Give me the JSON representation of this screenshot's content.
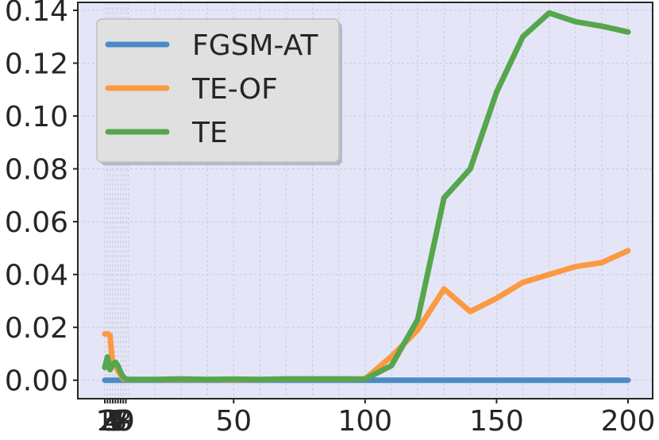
{
  "chart_data": {
    "type": "line",
    "title": "",
    "xlabel": "",
    "ylabel": "",
    "x": [
      1,
      2,
      3,
      4,
      5,
      6,
      7,
      8,
      9,
      10,
      20,
      30,
      40,
      50,
      60,
      70,
      80,
      90,
      100,
      110,
      120,
      130,
      140,
      150,
      160,
      170,
      180,
      190,
      200
    ],
    "x_ticks": [
      {
        "value": 1,
        "label": "1"
      },
      {
        "value": 2,
        "label": "2"
      },
      {
        "value": 3,
        "label": "3"
      },
      {
        "value": 4,
        "label": "4"
      },
      {
        "value": 5,
        "label": "5"
      },
      {
        "value": 6,
        "label": "6"
      },
      {
        "value": 7,
        "label": "7"
      },
      {
        "value": 8,
        "label": "8"
      },
      {
        "value": 9,
        "label": "9"
      },
      {
        "value": 50,
        "label": "50"
      },
      {
        "value": 100,
        "label": "100"
      },
      {
        "value": 150,
        "label": "150"
      },
      {
        "value": 200,
        "label": "200"
      }
    ],
    "y_ticks": [
      "0.00",
      "0.02",
      "0.04",
      "0.06",
      "0.08",
      "0.10",
      "0.12",
      "0.14"
    ],
    "ylim": [
      -0.007,
      0.143
    ],
    "grid": true,
    "legend_position": "top-left",
    "colors": {
      "background": "#e5e5f8",
      "grid": "#c9c9dd"
    },
    "series": [
      {
        "name": "FGSM-AT",
        "color": "#4a8bc4",
        "values": [
          0,
          0,
          0,
          0,
          0,
          0,
          0,
          0,
          0,
          0,
          0,
          0,
          0,
          0,
          0,
          0,
          0,
          0,
          0,
          0,
          0,
          0,
          0,
          0,
          0,
          0,
          0,
          0,
          0
        ]
      },
      {
        "name": "TE-OF",
        "color": "#fb9a40",
        "values": [
          0.0175,
          0.0176,
          0.017,
          0.006,
          0.0055,
          0.0035,
          0.002,
          0.0005,
          0.0003,
          0.0002,
          0.0002,
          0.0003,
          0.0002,
          0.0002,
          0.0002,
          0.0004,
          0.0004,
          0.0004,
          0.0005,
          0.009,
          0.019,
          0.0345,
          0.026,
          0.031,
          0.037,
          0.04,
          0.043,
          0.0445,
          0.049
        ]
      },
      {
        "name": "TE",
        "color": "#55a64c",
        "values": [
          0.0048,
          0.0088,
          0.004,
          0.0058,
          0.0068,
          0.0055,
          0.003,
          0.0012,
          0.0005,
          0.0003,
          0.0003,
          0.0005,
          0.0003,
          0.0004,
          0.0003,
          0.0005,
          0.0005,
          0.0005,
          0.0004,
          0.0055,
          0.023,
          0.069,
          0.08,
          0.109,
          0.13,
          0.139,
          0.1357,
          0.134,
          0.1318
        ]
      }
    ]
  }
}
